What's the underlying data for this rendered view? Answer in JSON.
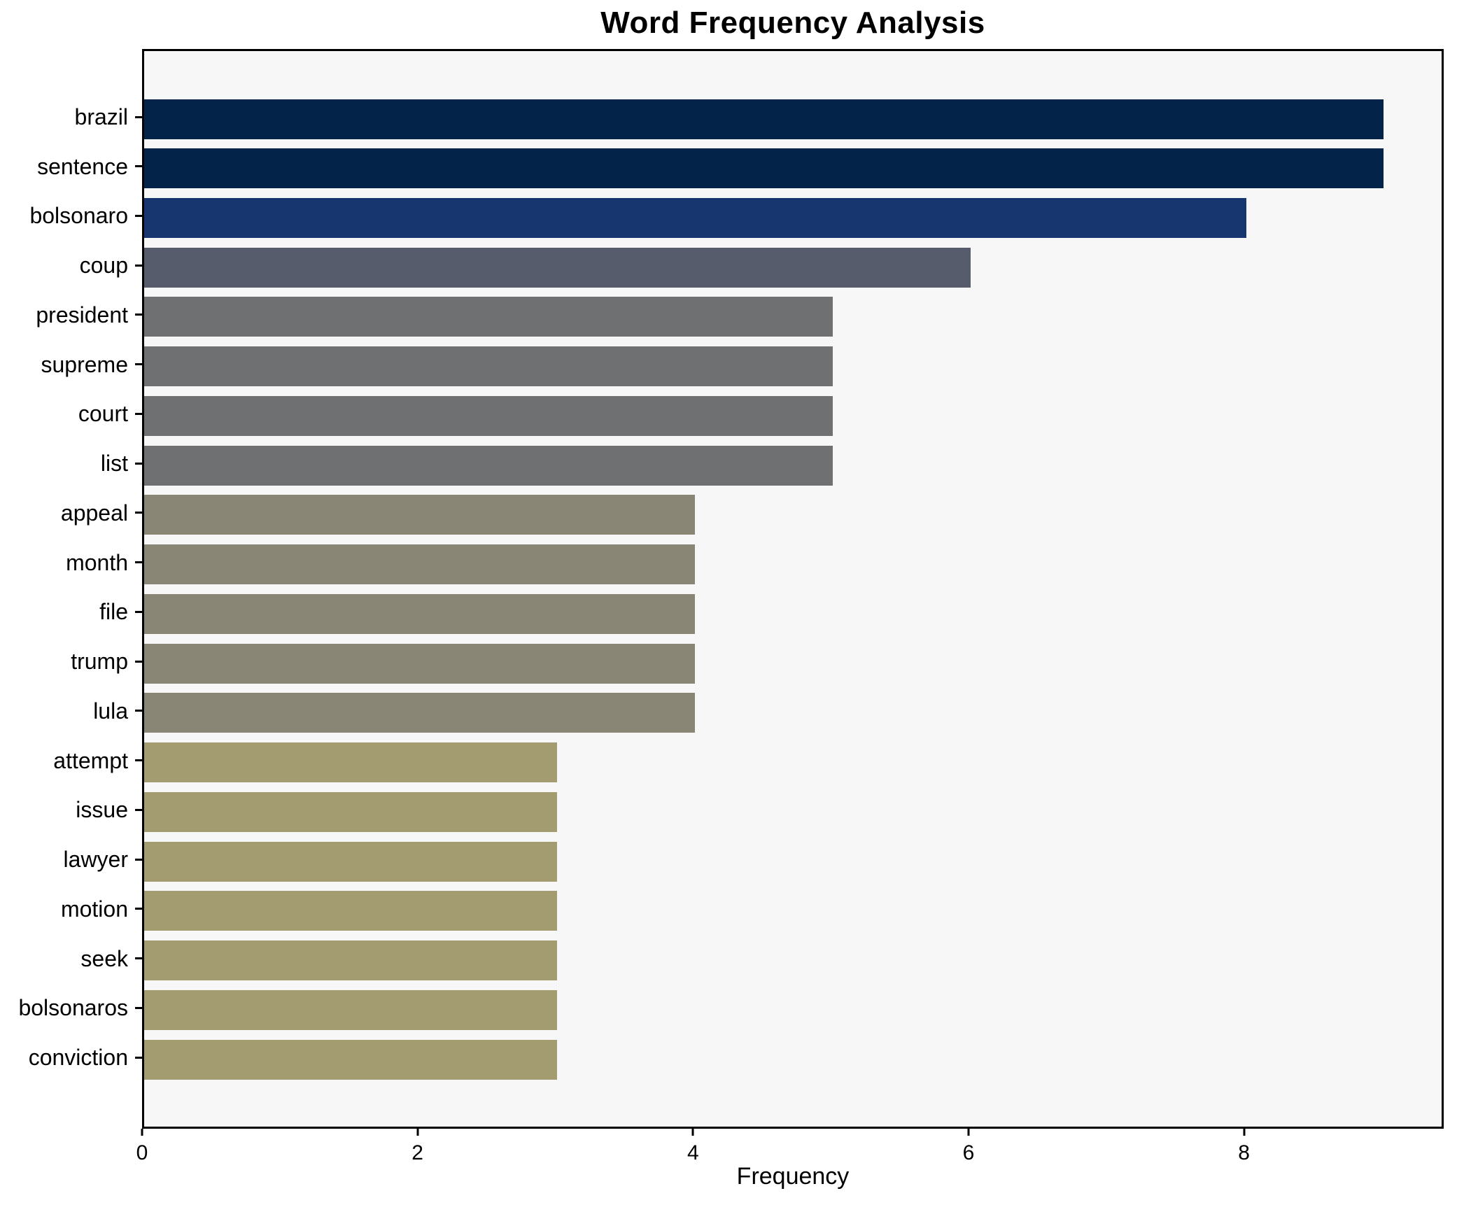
{
  "chart_data": {
    "type": "bar",
    "orientation": "horizontal",
    "title": "Word Frequency Analysis",
    "xlabel": "Frequency",
    "ylabel": "",
    "categories": [
      "brazil",
      "sentence",
      "bolsonaro",
      "coup",
      "president",
      "supreme",
      "court",
      "list",
      "appeal",
      "month",
      "file",
      "trump",
      "lula",
      "attempt",
      "issue",
      "lawyer",
      "motion",
      "seek",
      "bolsonaros",
      "conviction"
    ],
    "values": [
      9,
      9,
      8,
      6,
      5,
      5,
      5,
      5,
      4,
      4,
      4,
      4,
      4,
      3,
      3,
      3,
      3,
      3,
      3,
      3
    ],
    "bar_colors": [
      "#032349",
      "#032349",
      "#17356E",
      "#575C6C",
      "#6E7072",
      "#6E7072",
      "#6E7072",
      "#6E7072",
      "#898675",
      "#898675",
      "#898675",
      "#898675",
      "#898675",
      "#A49C71",
      "#A49C71",
      "#A49C71",
      "#A49C71",
      "#A49C71",
      "#A49C71",
      "#A49C71"
    ],
    "xticks": [
      0,
      2,
      4,
      6,
      8
    ],
    "xlim": [
      0,
      9.45
    ],
    "grid": false,
    "legend": null,
    "plot_background": "#F7F7F7",
    "figure_background": "#FFFFFF",
    "spine_color": "#000000"
  }
}
